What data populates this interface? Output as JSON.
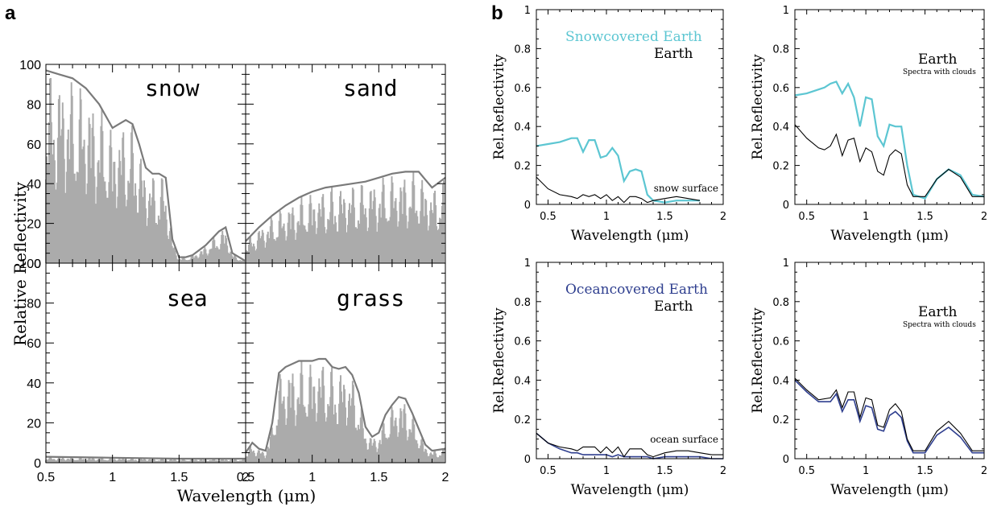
{
  "panel_a": {
    "label": "a",
    "xlabel": "Wavelength (μm)",
    "ylabel": "Relative Reflectivity",
    "xticks": [
      "0.5",
      "1",
      "1.5",
      "2"
    ],
    "yticks": [
      "0",
      "20",
      "40",
      "60",
      "80",
      "100"
    ],
    "surfaces": [
      "snow",
      "sand",
      "sea",
      "grass"
    ]
  },
  "panel_b": {
    "label": "b",
    "xlabel": "Wavelength (μm)",
    "ylabel": "Rel.Reflectivity",
    "xticks": [
      "0.5",
      "1",
      "1.5",
      "2"
    ],
    "yticks": [
      "0",
      "0.2",
      "0.4",
      "0.6",
      "0.8",
      "1"
    ],
    "subplots": [
      {
        "legend_colored": "Snowcovered Earth",
        "legend_black": "Earth",
        "note": "",
        "annotation": "snow surface"
      },
      {
        "legend_colored": "",
        "legend_black": "Earth",
        "note": "Spectra with clouds",
        "annotation": ""
      },
      {
        "legend_colored": "Oceancovered Earth",
        "legend_black": "Earth",
        "note": "",
        "annotation": "ocean surface"
      },
      {
        "legend_colored": "",
        "legend_black": "Earth",
        "note": "Spectra with clouds",
        "annotation": ""
      }
    ]
  },
  "colors": {
    "snow_cyan": "#5cc6d2",
    "ocean_blue": "#2f3f8f",
    "envelope": "#7a7a7a",
    "fill_grey": "#ababab",
    "black": "#000000"
  },
  "chart_data": [
    {
      "type": "area",
      "title": "snow",
      "xlabel": "Wavelength (μm)",
      "ylabel": "Relative Reflectivity",
      "xlim": [
        0.5,
        2.0
      ],
      "ylim": [
        0,
        100
      ],
      "x": [
        0.5,
        0.6,
        0.7,
        0.8,
        0.9,
        1.0,
        1.05,
        1.1,
        1.15,
        1.2,
        1.25,
        1.3,
        1.35,
        1.4,
        1.45,
        1.5,
        1.55,
        1.6,
        1.7,
        1.8,
        1.85,
        1.9,
        2.0
      ],
      "series": [
        {
          "values": [
            97,
            95,
            93,
            88,
            80,
            68,
            70,
            72,
            70,
            60,
            48,
            45,
            45,
            43,
            12,
            3,
            3,
            4,
            9,
            16,
            18,
            5,
            1
          ]
        }
      ]
    },
    {
      "type": "area",
      "title": "sand",
      "xlabel": "Wavelength (μm)",
      "ylabel": "Relative Reflectivity",
      "xlim": [
        0.5,
        2.0
      ],
      "ylim": [
        0,
        100
      ],
      "x": [
        0.5,
        0.6,
        0.7,
        0.8,
        0.9,
        1.0,
        1.1,
        1.2,
        1.3,
        1.4,
        1.5,
        1.6,
        1.7,
        1.8,
        1.85,
        1.9,
        2.0
      ],
      "series": [
        {
          "values": [
            11,
            18,
            24,
            29,
            33,
            36,
            38,
            39,
            40,
            41,
            43,
            45,
            46,
            46,
            42,
            38,
            43
          ]
        }
      ]
    },
    {
      "type": "area",
      "title": "sea",
      "xlabel": "Wavelength (μm)",
      "ylabel": "Relative Reflectivity",
      "xlim": [
        0.5,
        2.0
      ],
      "ylim": [
        0,
        100
      ],
      "x": [
        0.5,
        1.0,
        1.5,
        2.0
      ],
      "series": [
        {
          "values": [
            3,
            2.5,
            2,
            2
          ]
        }
      ]
    },
    {
      "type": "area",
      "title": "grass",
      "xlabel": "Wavelength (μm)",
      "ylabel": "Relative Reflectivity",
      "xlim": [
        0.5,
        2.0
      ],
      "ylim": [
        0,
        100
      ],
      "x": [
        0.5,
        0.55,
        0.6,
        0.65,
        0.7,
        0.75,
        0.8,
        0.9,
        1.0,
        1.05,
        1.1,
        1.15,
        1.2,
        1.25,
        1.3,
        1.35,
        1.4,
        1.45,
        1.5,
        1.55,
        1.6,
        1.65,
        1.7,
        1.75,
        1.8,
        1.85,
        1.9,
        2.0
      ],
      "series": [
        {
          "values": [
            5,
            10,
            7,
            6,
            20,
            45,
            48,
            51,
            51,
            52,
            52,
            48,
            47,
            48,
            44,
            35,
            18,
            13,
            15,
            24,
            29,
            33,
            32,
            25,
            17,
            9,
            6,
            7
          ]
        }
      ]
    },
    {
      "type": "line",
      "xlabel": "Wavelength (μm)",
      "ylabel": "Rel.Reflectivity",
      "xlim": [
        0.4,
        2.0
      ],
      "ylim": [
        0,
        1
      ],
      "legend": [
        "Snowcovered Earth",
        "Earth"
      ],
      "x": [
        0.4,
        0.5,
        0.6,
        0.7,
        0.75,
        0.8,
        0.85,
        0.9,
        0.95,
        1.0,
        1.05,
        1.1,
        1.15,
        1.2,
        1.25,
        1.3,
        1.35,
        1.4,
        1.5,
        1.6,
        1.7,
        1.8
      ],
      "series": [
        {
          "name": "Snowcovered Earth",
          "values": [
            0.3,
            0.31,
            0.32,
            0.34,
            0.34,
            0.27,
            0.33,
            0.33,
            0.24,
            0.25,
            0.29,
            0.25,
            0.12,
            0.17,
            0.18,
            0.17,
            0.05,
            0.02,
            0.01,
            0.02,
            0.02,
            0.02
          ]
        },
        {
          "name": "Earth",
          "values": [
            0.14,
            0.08,
            0.05,
            0.04,
            0.03,
            0.05,
            0.04,
            0.05,
            0.03,
            0.05,
            0.02,
            0.04,
            0.01,
            0.04,
            0.04,
            0.03,
            0.01,
            0.02,
            0.03,
            0.04,
            0.03,
            0.02
          ]
        }
      ]
    },
    {
      "type": "line",
      "xlabel": "Wavelength (μm)",
      "ylabel": "Rel.Reflectivity",
      "xlim": [
        0.4,
        2.0
      ],
      "ylim": [
        0,
        1
      ],
      "legend": [
        "Earth"
      ],
      "x": [
        0.4,
        0.5,
        0.6,
        0.65,
        0.7,
        0.75,
        0.8,
        0.85,
        0.9,
        0.95,
        1.0,
        1.05,
        1.1,
        1.15,
        1.2,
        1.25,
        1.3,
        1.35,
        1.4,
        1.5,
        1.6,
        1.7,
        1.8,
        1.9,
        2.0
      ],
      "series": [
        {
          "values": [
            0.56,
            0.57,
            0.59,
            0.6,
            0.62,
            0.63,
            0.57,
            0.62,
            0.55,
            0.4,
            0.55,
            0.54,
            0.35,
            0.3,
            0.41,
            0.4,
            0.4,
            0.2,
            0.05,
            0.03,
            0.13,
            0.18,
            0.15,
            0.05,
            0.04
          ]
        },
        {
          "values": [
            0.41,
            0.34,
            0.29,
            0.28,
            0.3,
            0.36,
            0.25,
            0.33,
            0.34,
            0.22,
            0.29,
            0.27,
            0.17,
            0.15,
            0.25,
            0.28,
            0.26,
            0.1,
            0.04,
            0.04,
            0.13,
            0.18,
            0.14,
            0.04,
            0.04
          ]
        }
      ]
    },
    {
      "type": "line",
      "xlabel": "Wavelength (μm)",
      "ylabel": "Rel.Reflectivity",
      "xlim": [
        0.4,
        2.0
      ],
      "ylim": [
        0,
        1
      ],
      "legend": [
        "Oceancovered Earth",
        "Earth"
      ],
      "x": [
        0.4,
        0.5,
        0.6,
        0.7,
        0.75,
        0.8,
        0.85,
        0.9,
        0.95,
        1.0,
        1.05,
        1.1,
        1.15,
        1.2,
        1.3,
        1.35,
        1.4,
        1.5,
        1.6,
        1.7,
        1.8,
        1.9,
        2.0
      ],
      "series": [
        {
          "name": "Oceancovered Earth",
          "values": [
            0.13,
            0.08,
            0.05,
            0.03,
            0.03,
            0.02,
            0.02,
            0.02,
            0.02,
            0.02,
            0.01,
            0.02,
            0.01,
            0.01,
            0.01,
            0.01,
            0.0,
            0.01,
            0.01,
            0.01,
            0.01,
            0.0,
            0.0
          ]
        },
        {
          "name": "Earth",
          "values": [
            0.13,
            0.08,
            0.06,
            0.05,
            0.04,
            0.06,
            0.06,
            0.06,
            0.03,
            0.06,
            0.03,
            0.06,
            0.01,
            0.05,
            0.05,
            0.02,
            0.01,
            0.03,
            0.04,
            0.04,
            0.03,
            0.02,
            0.02
          ]
        }
      ]
    },
    {
      "type": "line",
      "xlabel": "Wavelength (μm)",
      "ylabel": "Rel.Reflectivity",
      "xlim": [
        0.4,
        2.0
      ],
      "ylim": [
        0,
        1
      ],
      "legend": [
        "Earth"
      ],
      "x": [
        0.4,
        0.5,
        0.6,
        0.7,
        0.75,
        0.8,
        0.85,
        0.9,
        0.95,
        1.0,
        1.05,
        1.1,
        1.15,
        1.2,
        1.25,
        1.3,
        1.35,
        1.4,
        1.5,
        1.6,
        1.7,
        1.8,
        1.9,
        2.0
      ],
      "series": [
        {
          "values": [
            0.4,
            0.34,
            0.29,
            0.29,
            0.33,
            0.24,
            0.3,
            0.3,
            0.19,
            0.27,
            0.26,
            0.15,
            0.14,
            0.22,
            0.24,
            0.21,
            0.09,
            0.03,
            0.03,
            0.12,
            0.16,
            0.11,
            0.03,
            0.03
          ]
        },
        {
          "values": [
            0.41,
            0.35,
            0.3,
            0.31,
            0.35,
            0.26,
            0.34,
            0.34,
            0.21,
            0.31,
            0.3,
            0.17,
            0.16,
            0.25,
            0.28,
            0.24,
            0.1,
            0.04,
            0.04,
            0.14,
            0.19,
            0.13,
            0.04,
            0.04
          ]
        }
      ]
    }
  ]
}
